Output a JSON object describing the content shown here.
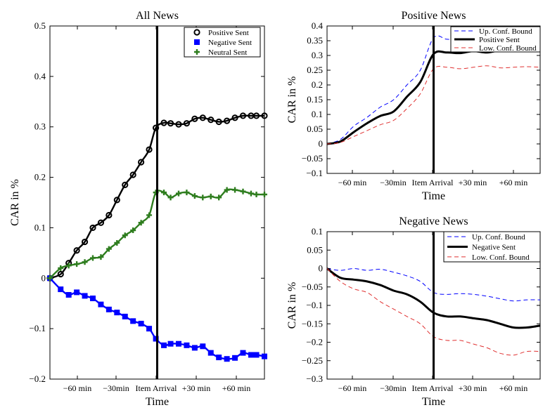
{
  "chart_data": [
    {
      "type": "line",
      "title": "All News",
      "xlabel": "Time",
      "ylabel": "CAR in %",
      "xlim": [
        -80,
        80
      ],
      "ylim": [
        -0.2,
        0.5
      ],
      "yticks": [
        "0.5",
        "0.4",
        "0.3",
        "0.2",
        "0.1",
        "0",
        "−0.1",
        "−0.2"
      ],
      "xticks": [
        "−60 min",
        "−30min",
        "Item Arrival",
        "+30 min",
        "+60 min"
      ],
      "event_line_x": 0,
      "legend_position": "top-right",
      "series": [
        {
          "name": "Positive Sent",
          "color": "#000000",
          "marker": "circle",
          "x": [
            -80,
            -72,
            -66,
            -60,
            -54,
            -48,
            -42,
            -36,
            -30,
            -24,
            -18,
            -12,
            -6,
            -1,
            5,
            10,
            16,
            22,
            28,
            34,
            40,
            46,
            52,
            58,
            64,
            70,
            74,
            80
          ],
          "y": [
            0,
            0.008,
            0.03,
            0.055,
            0.072,
            0.1,
            0.11,
            0.125,
            0.155,
            0.185,
            0.205,
            0.23,
            0.255,
            0.298,
            0.308,
            0.307,
            0.305,
            0.307,
            0.316,
            0.318,
            0.314,
            0.31,
            0.312,
            0.318,
            0.322,
            0.322,
            0.322,
            0.322
          ]
        },
        {
          "name": "Negative Sent",
          "color": "#0000ff",
          "marker": "square",
          "x": [
            -80,
            -72,
            -66,
            -60,
            -54,
            -48,
            -42,
            -36,
            -30,
            -24,
            -18,
            -12,
            -6,
            -1,
            5,
            10,
            16,
            22,
            28,
            34,
            40,
            46,
            52,
            58,
            64,
            70,
            74,
            80
          ],
          "y": [
            0,
            -0.022,
            -0.033,
            -0.028,
            -0.035,
            -0.04,
            -0.052,
            -0.062,
            -0.068,
            -0.076,
            -0.085,
            -0.09,
            -0.1,
            -0.12,
            -0.133,
            -0.13,
            -0.13,
            -0.133,
            -0.138,
            -0.135,
            -0.148,
            -0.157,
            -0.16,
            -0.158,
            -0.148,
            -0.152,
            -0.152,
            -0.155
          ]
        },
        {
          "name": "Neutral Sent",
          "color": "#2e7d1e",
          "marker": "plus",
          "x": [
            -80,
            -72,
            -66,
            -60,
            -54,
            -48,
            -42,
            -36,
            -30,
            -24,
            -18,
            -12,
            -6,
            -1,
            5,
            10,
            16,
            22,
            28,
            34,
            40,
            46,
            52,
            58,
            64,
            70,
            74,
            80
          ],
          "y": [
            0,
            0.02,
            0.025,
            0.028,
            0.032,
            0.04,
            0.042,
            0.058,
            0.07,
            0.085,
            0.095,
            0.11,
            0.125,
            0.17,
            0.17,
            0.16,
            0.168,
            0.17,
            0.163,
            0.16,
            0.162,
            0.16,
            0.175,
            0.175,
            0.172,
            0.168,
            0.166,
            0.166
          ]
        }
      ]
    },
    {
      "type": "line",
      "title": "Positive News",
      "xlabel": "Time",
      "ylabel": "CAR in %",
      "xlim": [
        -80,
        80
      ],
      "ylim": [
        -0.1,
        0.4
      ],
      "yticks": [
        "0.4",
        "0.35",
        "0.3",
        "0.25",
        "0.2",
        "0.15",
        "0.1",
        "0.05",
        "0",
        "−0.05",
        "−0.1"
      ],
      "xticks": [
        "−60 min",
        "−30min",
        "Item Arrival",
        "+30 min",
        "+60 min"
      ],
      "event_line_x": 0,
      "legend_position": "top-right",
      "series": [
        {
          "name": "Up. Conf. Bound",
          "color": "#0000ff",
          "dash": "dashed",
          "x": [
            -80,
            -70,
            -60,
            -50,
            -40,
            -30,
            -20,
            -10,
            0,
            10,
            20,
            30,
            40,
            50,
            60,
            70,
            80
          ],
          "y": [
            0,
            0.015,
            0.06,
            0.09,
            0.125,
            0.15,
            0.2,
            0.25,
            0.36,
            0.355,
            0.355,
            0.36,
            0.355,
            0.36,
            0.365,
            0.37,
            0.37
          ]
        },
        {
          "name": "Positive Sent",
          "color": "#000000",
          "dash": "solid",
          "x": [
            -80,
            -70,
            -60,
            -50,
            -40,
            -30,
            -20,
            -10,
            0,
            10,
            20,
            30,
            40,
            50,
            60,
            70,
            80
          ],
          "y": [
            0,
            0.008,
            0.04,
            0.07,
            0.095,
            0.11,
            0.16,
            0.21,
            0.305,
            0.31,
            0.308,
            0.315,
            0.31,
            0.318,
            0.322,
            0.32,
            0.32
          ]
        },
        {
          "name": "Low. Conf. Bound",
          "color": "#e03030",
          "dash": "dashed",
          "x": [
            -80,
            -70,
            -60,
            -50,
            -40,
            -30,
            -20,
            -10,
            0,
            10,
            20,
            30,
            40,
            50,
            60,
            70,
            80
          ],
          "y": [
            0,
            0.005,
            0.025,
            0.045,
            0.065,
            0.08,
            0.12,
            0.17,
            0.255,
            0.26,
            0.255,
            0.26,
            0.265,
            0.258,
            0.26,
            0.262,
            0.26
          ]
        }
      ]
    },
    {
      "type": "line",
      "title": "Negative News",
      "xlabel": "Time",
      "ylabel": "CAR in %",
      "xlim": [
        -80,
        80
      ],
      "ylim": [
        -0.3,
        0.1
      ],
      "yticks": [
        "0.1",
        "0.05",
        "0",
        "−0.05",
        "−0.1",
        "−0.15",
        "−0.2",
        "−0.25",
        "−0.3"
      ],
      "xticks": [
        "−60 min",
        "−30min",
        "Item Arrival",
        "+30 min",
        "+60 min"
      ],
      "event_line_x": 0,
      "legend_position": "top-right",
      "series": [
        {
          "name": "Up. Conf. Bound",
          "color": "#0000ff",
          "dash": "dashed",
          "x": [
            -80,
            -70,
            -60,
            -50,
            -40,
            -30,
            -20,
            -10,
            0,
            10,
            20,
            30,
            40,
            50,
            60,
            70,
            80
          ],
          "y": [
            0,
            -0.005,
            0,
            -0.005,
            -0.002,
            -0.01,
            -0.02,
            -0.035,
            -0.065,
            -0.07,
            -0.068,
            -0.07,
            -0.075,
            -0.082,
            -0.088,
            -0.085,
            -0.085
          ]
        },
        {
          "name": "Negative Sent",
          "color": "#000000",
          "dash": "solid",
          "x": [
            -80,
            -70,
            -60,
            -50,
            -40,
            -30,
            -20,
            -10,
            0,
            10,
            20,
            30,
            40,
            50,
            60,
            70,
            80
          ],
          "y": [
            0,
            -0.025,
            -0.03,
            -0.035,
            -0.045,
            -0.06,
            -0.07,
            -0.09,
            -0.12,
            -0.13,
            -0.13,
            -0.135,
            -0.14,
            -0.15,
            -0.16,
            -0.16,
            -0.155
          ]
        },
        {
          "name": "Low. Conf. Bound",
          "color": "#e03030",
          "dash": "dashed",
          "x": [
            -80,
            -70,
            -60,
            -50,
            -40,
            -30,
            -20,
            -10,
            0,
            10,
            20,
            30,
            40,
            50,
            60,
            70,
            80
          ],
          "y": [
            0,
            -0.035,
            -0.055,
            -0.065,
            -0.09,
            -0.11,
            -0.13,
            -0.15,
            -0.185,
            -0.195,
            -0.195,
            -0.205,
            -0.215,
            -0.23,
            -0.235,
            -0.225,
            -0.225
          ]
        }
      ]
    }
  ]
}
